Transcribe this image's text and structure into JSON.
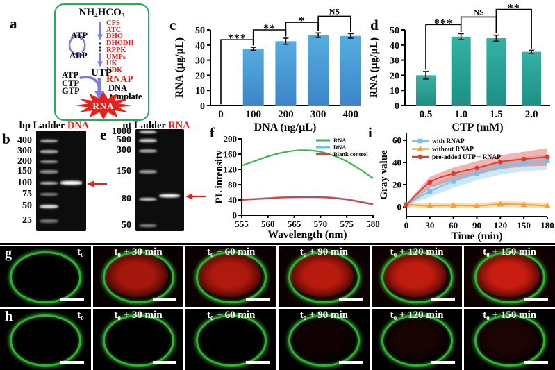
{
  "colors": {
    "box_green": "#1fb14f",
    "arrow_blue": "#7b7bea",
    "enzyme_red": "#e8201c",
    "gel_arrow_red": "#e8201c",
    "bar_blue_top": "#55acdf",
    "bar_blue_bottom": "#3c85c9",
    "bar_teal_top": "#34b2a3",
    "bar_teal_bottom": "#1e8f84",
    "rna_green": "#3cb54a",
    "dna_blue": "#63c5ee",
    "blank_red": "#e23c41",
    "with_rnap_blue": "#74c3ee",
    "without_rnap_orange": "#f6a12f",
    "preadded_red": "#de3a31",
    "vesicle_green": "#2fb42f",
    "star_red": "#e8201c"
  },
  "panel_a": {
    "label": "a",
    "top_compound": "NH₄HCO₃",
    "enzymes": [
      "CPS",
      "ATC",
      "DHO",
      "DHODH",
      "RPPK",
      "UMPs",
      "UK",
      "NDK"
    ],
    "cycle_top": "ATP",
    "cycle_bottom": "ADP",
    "intermediate": "UTP",
    "substrates": [
      "ATP",
      "CTP",
      "GTP"
    ],
    "polymerase": "RNAP",
    "template_line1": "DNA",
    "template_line2": "template",
    "product": "RNA"
  },
  "panel_b": {
    "label": "b",
    "header_black": "bp Ladder",
    "header_red": "DNA",
    "ladder": [
      {
        "label": "400",
        "y": 0.103
      },
      {
        "label": "300",
        "y": 0.207
      },
      {
        "label": "200",
        "y": 0.31
      },
      {
        "label": "150",
        "y": 0.407
      },
      {
        "label": "100",
        "y": 0.524
      },
      {
        "label": "75",
        "y": 0.634
      },
      {
        "label": "50",
        "y": 0.752
      },
      {
        "label": "25",
        "y": 0.897
      }
    ],
    "band_opacities": [
      0.75,
      0.7,
      0.65,
      0.6,
      0.8,
      0.55,
      0.95,
      0.5
    ],
    "sample_band_y": 0.52
  },
  "panel_e": {
    "label": "e",
    "header_black": "nt Ladder",
    "header_red": "RNA",
    "ladder": [
      {
        "label": "1000",
        "y": 0.027
      },
      {
        "label": "500",
        "y": 0.109
      },
      {
        "label": "300",
        "y": 0.211
      },
      {
        "label": "150",
        "y": 0.415
      },
      {
        "label": "80",
        "y": 0.687
      },
      {
        "label": "50",
        "y": 0.945
      }
    ],
    "band_opacities": [
      0.9,
      0.85,
      0.7,
      0.65,
      0.9,
      0.6
    ],
    "sample_band_y": 0.65
  },
  "panel_g": {
    "label": "g",
    "frames": [
      "t₀",
      "t₀ + 30 min",
      "t₀ + 60 min",
      "t₀ + 90 min",
      "t₀ + 120 min",
      "t₀ + 150 min"
    ],
    "red_fill": [
      0,
      0.78,
      0.84,
      0.88,
      0.92,
      0.97
    ],
    "red_bg": [
      0,
      0.3,
      0.36,
      0.42,
      0.46,
      0.52
    ]
  },
  "panel_h": {
    "label": "h",
    "frames": [
      "t₀",
      "t₀ + 30 min",
      "t₀ + 60 min",
      "t₀ + 90 min",
      "t₀ + 120 min",
      "t₀ + 150 min"
    ],
    "red_fill": [
      0,
      0,
      0,
      0.07,
      0.1,
      0.12
    ],
    "red_bg": [
      0,
      0,
      0,
      0.04,
      0.06,
      0.07
    ]
  },
  "chart_data": [
    {
      "id": "c",
      "type": "bar",
      "panel_label": "c",
      "xlabel": "DNA (ng/µL)",
      "ylabel": "RNA (µg/µL)",
      "categories": [
        "0",
        "100",
        "200",
        "300",
        "400"
      ],
      "values": [
        0,
        37.5,
        42.5,
        46.5,
        46
      ],
      "errors": [
        0,
        1,
        2,
        1.5,
        1.5
      ],
      "ylim": [
        0,
        50
      ],
      "yticks": [
        0,
        10,
        20,
        30,
        40,
        50
      ],
      "significance": [
        {
          "a": 0,
          "b": 1,
          "label": "***",
          "y": 43.5
        },
        {
          "a": 1,
          "b": 2,
          "label": "**",
          "y": 50
        },
        {
          "a": 2,
          "b": 3,
          "label": "*",
          "y": 55
        },
        {
          "a": 3,
          "b": 4,
          "label": "NS",
          "y": 59
        }
      ]
    },
    {
      "id": "d",
      "type": "bar",
      "panel_label": "d",
      "xlabel": "CTP (mM)",
      "ylabel": "RNA (µg/µL)",
      "categories": [
        "0.5",
        "1.0",
        "1.5",
        "2.0"
      ],
      "values": [
        20,
        45.5,
        44.5,
        35.5
      ],
      "errors": [
        2.5,
        2,
        2,
        1
      ],
      "ylim": [
        0,
        50
      ],
      "yticks": [
        0,
        10,
        20,
        30,
        40,
        50
      ],
      "significance": [
        {
          "a": 0,
          "b": 1,
          "label": "***",
          "y": 53.5
        },
        {
          "a": 1,
          "b": 2,
          "label": "NS",
          "y": 58.5
        },
        {
          "a": 2,
          "b": 3,
          "label": "**",
          "y": 63.5
        }
      ]
    },
    {
      "id": "f",
      "type": "line",
      "panel_label": "f",
      "xlabel": "Wavelength (nm)",
      "ylabel": "PL intensity",
      "x": [
        555,
        557.5,
        560,
        562.5,
        565,
        567.5,
        570,
        572.5,
        575,
        577.5,
        580
      ],
      "xticks": [
        555,
        560,
        565,
        570,
        575,
        580
      ],
      "ylim": [
        0,
        200
      ],
      "yticks": [
        0,
        40,
        80,
        120,
        160,
        200
      ],
      "legend_pos": "top-right",
      "series": [
        {
          "name": "RNA",
          "color": "#3cb54a",
          "values": [
            130,
            142,
            154,
            163,
            169,
            170,
            166,
            156,
            141,
            120,
            97
          ]
        },
        {
          "name": "DNA",
          "color": "#63c5ee",
          "values": [
            41,
            43,
            45,
            47,
            48,
            48.5,
            48,
            46,
            42,
            36,
            29
          ]
        },
        {
          "name": "Blank control",
          "color": "#e23c41",
          "values": [
            40,
            42,
            44,
            46,
            47,
            47.5,
            47,
            45,
            41,
            35,
            28
          ]
        }
      ]
    },
    {
      "id": "i",
      "type": "line-band",
      "panel_label": "i",
      "xlabel": "Time (min)",
      "ylabel": "Gray value",
      "x": [
        0,
        30,
        60,
        90,
        120,
        150,
        180
      ],
      "xticks": [
        0,
        30,
        60,
        90,
        120,
        150,
        180
      ],
      "ylim": [
        -8.75,
        66.25
      ],
      "yticks": [
        0,
        20,
        40,
        60
      ],
      "legend_pos": "top-left",
      "series": [
        {
          "name": "with RNAP",
          "marker": "square",
          "color": "#74c3ee",
          "values": [
            2,
            14,
            23,
            30,
            36,
            39.5,
            41.5
          ],
          "lower": [
            1,
            9,
            17,
            24,
            29,
            32,
            33.5
          ],
          "upper": [
            3,
            19,
            28.5,
            35.5,
            41,
            45,
            47
          ]
        },
        {
          "name": "without RNAP",
          "marker": "triangle",
          "color": "#f6a12f",
          "values": [
            2,
            1,
            1.5,
            1,
            2.5,
            2,
            1
          ],
          "lower": [
            0,
            -1,
            -0.5,
            -1,
            0,
            -0.5,
            -1
          ],
          "upper": [
            4,
            3,
            3.5,
            3,
            5,
            4.5,
            3
          ]
        },
        {
          "name": "pre-added UTP + RNAP",
          "marker": "circle",
          "color": "#de3a31",
          "values": [
            2,
            22,
            30,
            35,
            40.5,
            43,
            45
          ],
          "lower": [
            1,
            17,
            24,
            29,
            34,
            36.5,
            37
          ],
          "upper": [
            3,
            27,
            35.5,
            41,
            46.5,
            49.5,
            53
          ]
        }
      ]
    }
  ]
}
